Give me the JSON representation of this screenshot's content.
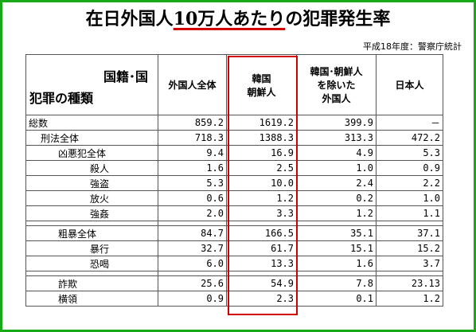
{
  "title": {
    "part1": "在日外国人",
    "part2": "10万人あたり",
    "part3": "の犯罪発生率"
  },
  "source": "平成18年度：警察庁統計",
  "header": {
    "corner_top": "国籍･国",
    "corner_bottom": "犯罪の種類",
    "col1": "外国人全体",
    "col2_l1": "韓国",
    "col2_l2": "朝鮮人",
    "col3_l1": "韓国･朝鮮人",
    "col3_l2": "を除いた",
    "col3_l3": "外国人",
    "col4": "日本人"
  },
  "rows": [
    {
      "label": "総数",
      "v": [
        "859.2",
        "1619.2",
        "399.9",
        "－"
      ]
    },
    {
      "label": "刑法全体",
      "v": [
        "718.3",
        "1388.3",
        "313.3",
        "472.2"
      ]
    },
    {
      "label": "凶悪犯全体",
      "v": [
        "9.4",
        "16.9",
        "4.9",
        "5.3"
      ]
    },
    {
      "label": "殺人",
      "v": [
        "1.6",
        "2.5",
        "1.0",
        "0.9"
      ]
    },
    {
      "label": "強盗",
      "v": [
        "5.3",
        "10.0",
        "2.4",
        "2.2"
      ]
    },
    {
      "label": "放火",
      "v": [
        "0.6",
        "1.2",
        "0.2",
        "1.0"
      ]
    },
    {
      "label": "強姦",
      "v": [
        "2.0",
        "3.3",
        "1.2",
        "1.1"
      ]
    },
    {
      "label": "粗暴全体",
      "v": [
        "84.7",
        "166.5",
        "35.1",
        "37.1"
      ]
    },
    {
      "label": "暴行",
      "v": [
        "32.7",
        "61.7",
        "15.1",
        "15.2"
      ]
    },
    {
      "label": "恐喝",
      "v": [
        "6.0",
        "13.3",
        "1.6",
        "3.7"
      ]
    },
    {
      "label": "詐欺",
      "v": [
        "25.6",
        "54.9",
        "7.8",
        "23.13"
      ]
    },
    {
      "label": "横領",
      "v": [
        "0.9",
        "2.3",
        "0.1",
        "1.2"
      ]
    }
  ],
  "colors": {
    "frame": "#18a918",
    "highlight": "#d40000"
  }
}
